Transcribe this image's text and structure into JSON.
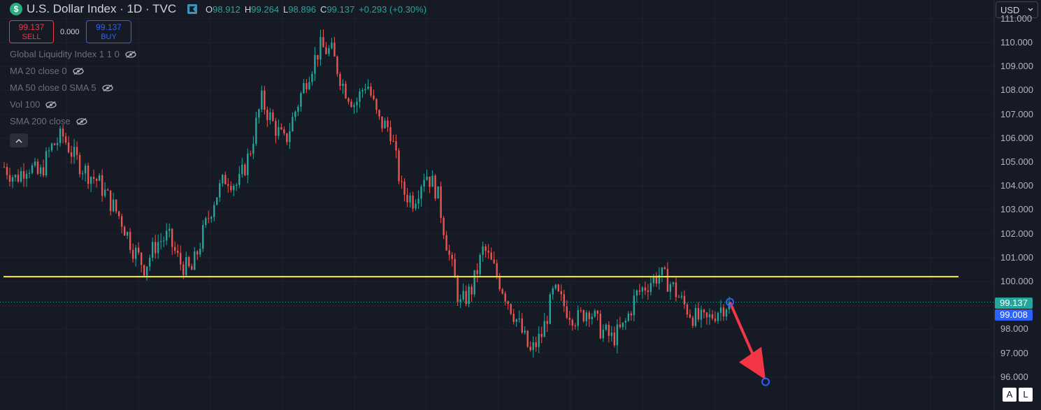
{
  "header": {
    "symbol_icon": "$",
    "title": "U.S. Dollar Index · 1D · TVC",
    "ohlc": {
      "o_label": "O",
      "o": "98.912",
      "h_label": "H",
      "h": "99.264",
      "l_label": "L",
      "l": "98.896",
      "c_label": "C",
      "c": "99.137",
      "change": "+0.293 (+0.30%)"
    }
  },
  "trade": {
    "sell_price": "99.137",
    "sell_label": "SELL",
    "spread": "0.000",
    "buy_price": "99.137",
    "buy_label": "BUY"
  },
  "indicators": [
    {
      "label": "Global Liquidity Index 1 1 0",
      "icon": "eye-off-icon"
    },
    {
      "label": "MA 20 close 0",
      "icon": "eye-off-icon"
    },
    {
      "label": "MA 50 close 0 SMA 5",
      "icon": "eye-off-icon"
    },
    {
      "label": "Vol 100",
      "icon": "eye-off-icon"
    },
    {
      "label": "SMA 200 close",
      "icon": "eye-off-icon"
    }
  ],
  "collapse_icon": "chevron-up-icon",
  "currency": {
    "value": "USD"
  },
  "price_axis": {
    "ticks": [
      "111.000",
      "110.000",
      "109.000",
      "108.000",
      "107.000",
      "106.000",
      "105.000",
      "104.000",
      "103.000",
      "102.000",
      "101.000",
      "100.000",
      "99.000",
      "98.000",
      "97.000",
      "96.000"
    ],
    "last_price": "99.137",
    "alt_price": "99.008"
  },
  "bottom_buttons": {
    "auto": "A",
    "log": "L"
  },
  "colors": {
    "background": "#161a25",
    "up": "#26a69a",
    "down": "#ef5350",
    "hline": "#ffeb3b",
    "arrow": "#f23645",
    "last_price_line": "#26a69a"
  },
  "chart_data": {
    "type": "candlestick",
    "hline_level": 100.2,
    "projection": {
      "from": 99.137,
      "to": 95.8
    },
    "y_range": [
      95.9,
      110.9
    ],
    "close_path": [
      104.8,
      104.3,
      104.9,
      104.4,
      105.6,
      106.1,
      105.2,
      104.6,
      104.2,
      103.4,
      102.6,
      101.4,
      100.6,
      101.6,
      101.9,
      100.8,
      100.4,
      102.0,
      103.5,
      104.4,
      104.0,
      105.4,
      107.6,
      106.6,
      105.8,
      107.3,
      108.7,
      109.8,
      109.6,
      108.2,
      107.4,
      108.4,
      106.7,
      106.4,
      103.8,
      103.4,
      104.6,
      103.8,
      101.2,
      99.0,
      99.7,
      101.4,
      100.4,
      99.3,
      98.2,
      97.0,
      97.8,
      99.6,
      98.9,
      98.4,
      98.9,
      98.0,
      97.6,
      98.1,
      99.4,
      99.9,
      100.3,
      99.9,
      99.1,
      98.5,
      98.3,
      98.8,
      99.137
    ]
  }
}
